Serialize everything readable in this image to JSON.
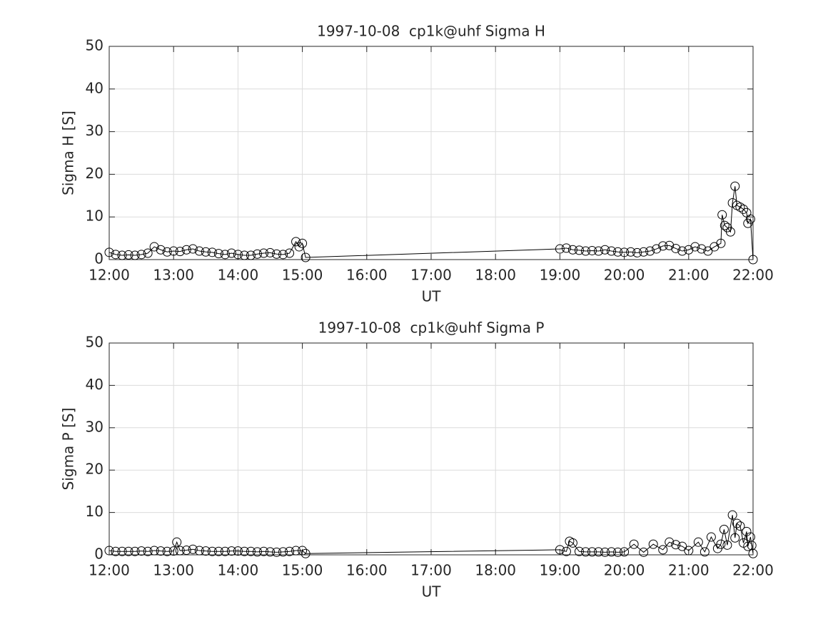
{
  "chart_data": [
    {
      "type": "line",
      "title": "1997-10-08  cp1k@uhf Sigma H",
      "xlabel": "UT",
      "ylabel": "Sigma H [S]",
      "x": [
        12.0,
        12.1,
        12.2,
        12.3,
        12.4,
        12.5,
        12.6,
        12.7,
        12.8,
        12.9,
        13.0,
        13.1,
        13.2,
        13.3,
        13.4,
        13.5,
        13.6,
        13.7,
        13.8,
        13.9,
        14.0,
        14.1,
        14.2,
        14.3,
        14.4,
        14.5,
        14.6,
        14.7,
        14.8,
        14.9,
        14.95,
        15.0,
        15.05,
        19.0,
        19.1,
        19.2,
        19.3,
        19.4,
        19.5,
        19.6,
        19.7,
        19.8,
        19.9,
        20.0,
        20.1,
        20.2,
        20.3,
        20.4,
        20.5,
        20.6,
        20.7,
        20.8,
        20.9,
        21.0,
        21.1,
        21.2,
        21.3,
        21.4,
        21.5,
        21.52,
        21.56,
        21.6,
        21.65,
        21.68,
        21.72,
        21.75,
        21.8,
        21.85,
        21.9,
        21.92,
        21.96,
        22.0
      ],
      "series": [
        {
          "name": "Sigma H",
          "color": "#000000",
          "values": [
            1.7,
            1.2,
            1.0,
            1.1,
            1.0,
            1.2,
            1.5,
            3.0,
            2.3,
            1.8,
            2.0,
            1.9,
            2.3,
            2.5,
            2.0,
            1.8,
            1.7,
            1.4,
            1.2,
            1.5,
            1.2,
            1.0,
            1.0,
            1.3,
            1.5,
            1.6,
            1.3,
            1.2,
            1.5,
            4.2,
            3.0,
            3.8,
            0.5,
            2.5,
            2.7,
            2.3,
            2.2,
            2.0,
            2.1,
            2.0,
            2.3,
            2.0,
            1.8,
            1.7,
            1.8,
            1.6,
            1.8,
            2.0,
            2.5,
            3.2,
            3.3,
            2.6,
            2.0,
            2.3,
            3.0,
            2.5,
            2.0,
            3.0,
            3.8,
            10.5,
            8.0,
            7.5,
            6.5,
            13.3,
            17.2,
            12.7,
            12.3,
            11.8,
            11.0,
            8.5,
            9.5,
            0.0
          ]
        }
      ],
      "xlim": [
        12,
        22
      ],
      "ylim": [
        0,
        50
      ],
      "xticks": [
        {
          "value": 12,
          "label": "12:00"
        },
        {
          "value": 13,
          "label": "13:00"
        },
        {
          "value": 14,
          "label": "14:00"
        },
        {
          "value": 15,
          "label": "15:00"
        },
        {
          "value": 16,
          "label": "16:00"
        },
        {
          "value": 17,
          "label": "17:00"
        },
        {
          "value": 18,
          "label": "18:00"
        },
        {
          "value": 19,
          "label": "19:00"
        },
        {
          "value": 20,
          "label": "20:00"
        },
        {
          "value": 21,
          "label": "21:00"
        },
        {
          "value": 22,
          "label": "22:00"
        }
      ],
      "yticks": [
        0,
        10,
        20,
        30,
        40,
        50
      ],
      "grid": true
    },
    {
      "type": "line",
      "title": "1997-10-08  cp1k@uhf Sigma P",
      "xlabel": "UT",
      "ylabel": "Sigma P [S]",
      "x": [
        12.0,
        12.1,
        12.2,
        12.3,
        12.4,
        12.5,
        12.6,
        12.7,
        12.8,
        12.9,
        13.0,
        13.05,
        13.1,
        13.2,
        13.3,
        13.4,
        13.5,
        13.6,
        13.7,
        13.8,
        13.9,
        14.0,
        14.1,
        14.2,
        14.3,
        14.4,
        14.5,
        14.6,
        14.7,
        14.8,
        14.9,
        15.0,
        15.05,
        19.0,
        19.1,
        19.15,
        19.2,
        19.3,
        19.4,
        19.5,
        19.6,
        19.7,
        19.8,
        19.9,
        20.0,
        20.15,
        20.3,
        20.45,
        20.6,
        20.7,
        20.8,
        20.9,
        21.0,
        21.15,
        21.25,
        21.35,
        21.45,
        21.5,
        21.55,
        21.6,
        21.68,
        21.72,
        21.75,
        21.8,
        21.85,
        21.9,
        21.92,
        21.96,
        21.98,
        22.0
      ],
      "series": [
        {
          "name": "Sigma P",
          "color": "#000000",
          "values": [
            1.0,
            0.8,
            0.8,
            0.8,
            0.8,
            0.9,
            0.8,
            1.0,
            0.9,
            0.8,
            0.9,
            3.0,
            1.0,
            1.1,
            1.3,
            1.0,
            0.9,
            0.8,
            0.8,
            0.8,
            0.9,
            0.9,
            0.8,
            0.8,
            0.7,
            0.8,
            0.7,
            0.6,
            0.7,
            0.8,
            1.0,
            1.0,
            0.3,
            1.2,
            0.8,
            3.2,
            2.8,
            0.8,
            0.7,
            0.7,
            0.7,
            0.6,
            0.7,
            0.6,
            0.7,
            2.5,
            0.6,
            2.5,
            1.2,
            3.0,
            2.4,
            2.0,
            1.0,
            3.0,
            0.7,
            4.2,
            1.5,
            2.5,
            6.0,
            2.3,
            9.4,
            4.0,
            7.4,
            6.8,
            2.8,
            5.5,
            2.0,
            4.2,
            2.2,
            0.3
          ]
        }
      ],
      "xlim": [
        12,
        22
      ],
      "ylim": [
        0,
        50
      ],
      "xticks": [
        {
          "value": 12,
          "label": "12:00"
        },
        {
          "value": 13,
          "label": "13:00"
        },
        {
          "value": 14,
          "label": "14:00"
        },
        {
          "value": 15,
          "label": "15:00"
        },
        {
          "value": 16,
          "label": "16:00"
        },
        {
          "value": 17,
          "label": "17:00"
        },
        {
          "value": 18,
          "label": "18:00"
        },
        {
          "value": 19,
          "label": "19:00"
        },
        {
          "value": 20,
          "label": "20:00"
        },
        {
          "value": 21,
          "label": "21:00"
        },
        {
          "value": 22,
          "label": "22:00"
        }
      ],
      "yticks": [
        0,
        10,
        20,
        30,
        40,
        50
      ],
      "grid": true
    }
  ]
}
